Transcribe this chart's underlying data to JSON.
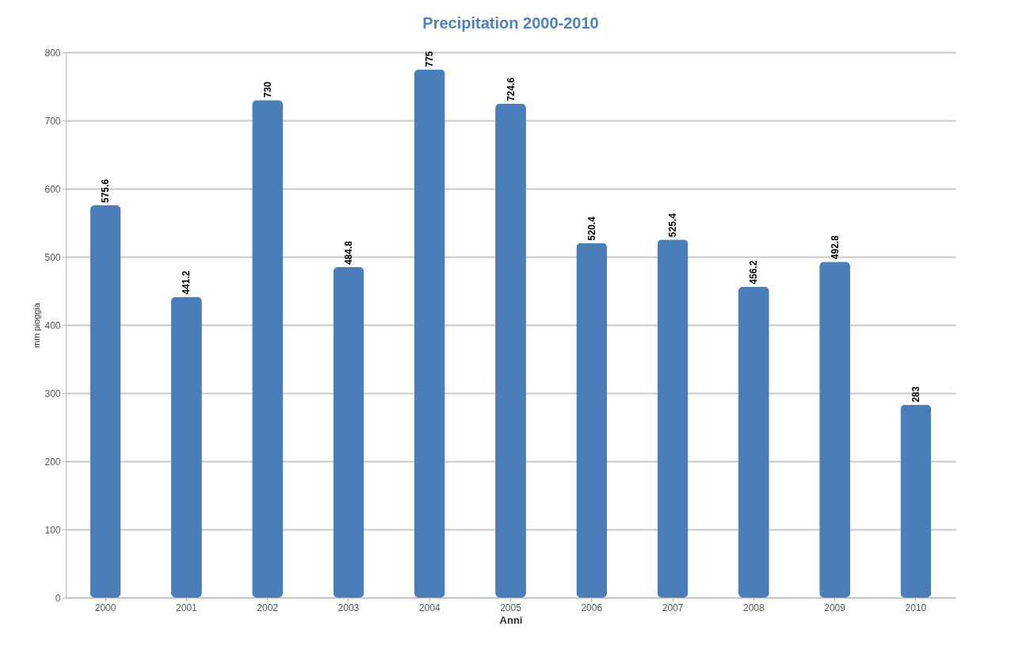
{
  "chart_data": {
    "type": "bar",
    "title": "Precipitation 2000-2010",
    "xlabel": "Anni",
    "ylabel": "mm pioggia",
    "categories": [
      "2000",
      "2001",
      "2002",
      "2003",
      "2004",
      "2005",
      "2006",
      "2007",
      "2008",
      "2009",
      "2010"
    ],
    "values": [
      575.6,
      441.2,
      730,
      484.8,
      775,
      724.6,
      520.4,
      525.4,
      456.2,
      492.8,
      283
    ],
    "color": "#4a7ebb",
    "ylim": [
      0,
      800
    ],
    "yticks": [
      0,
      100,
      200,
      300,
      400,
      500,
      600,
      700,
      800
    ],
    "grid": "y",
    "data_labels": true
  }
}
